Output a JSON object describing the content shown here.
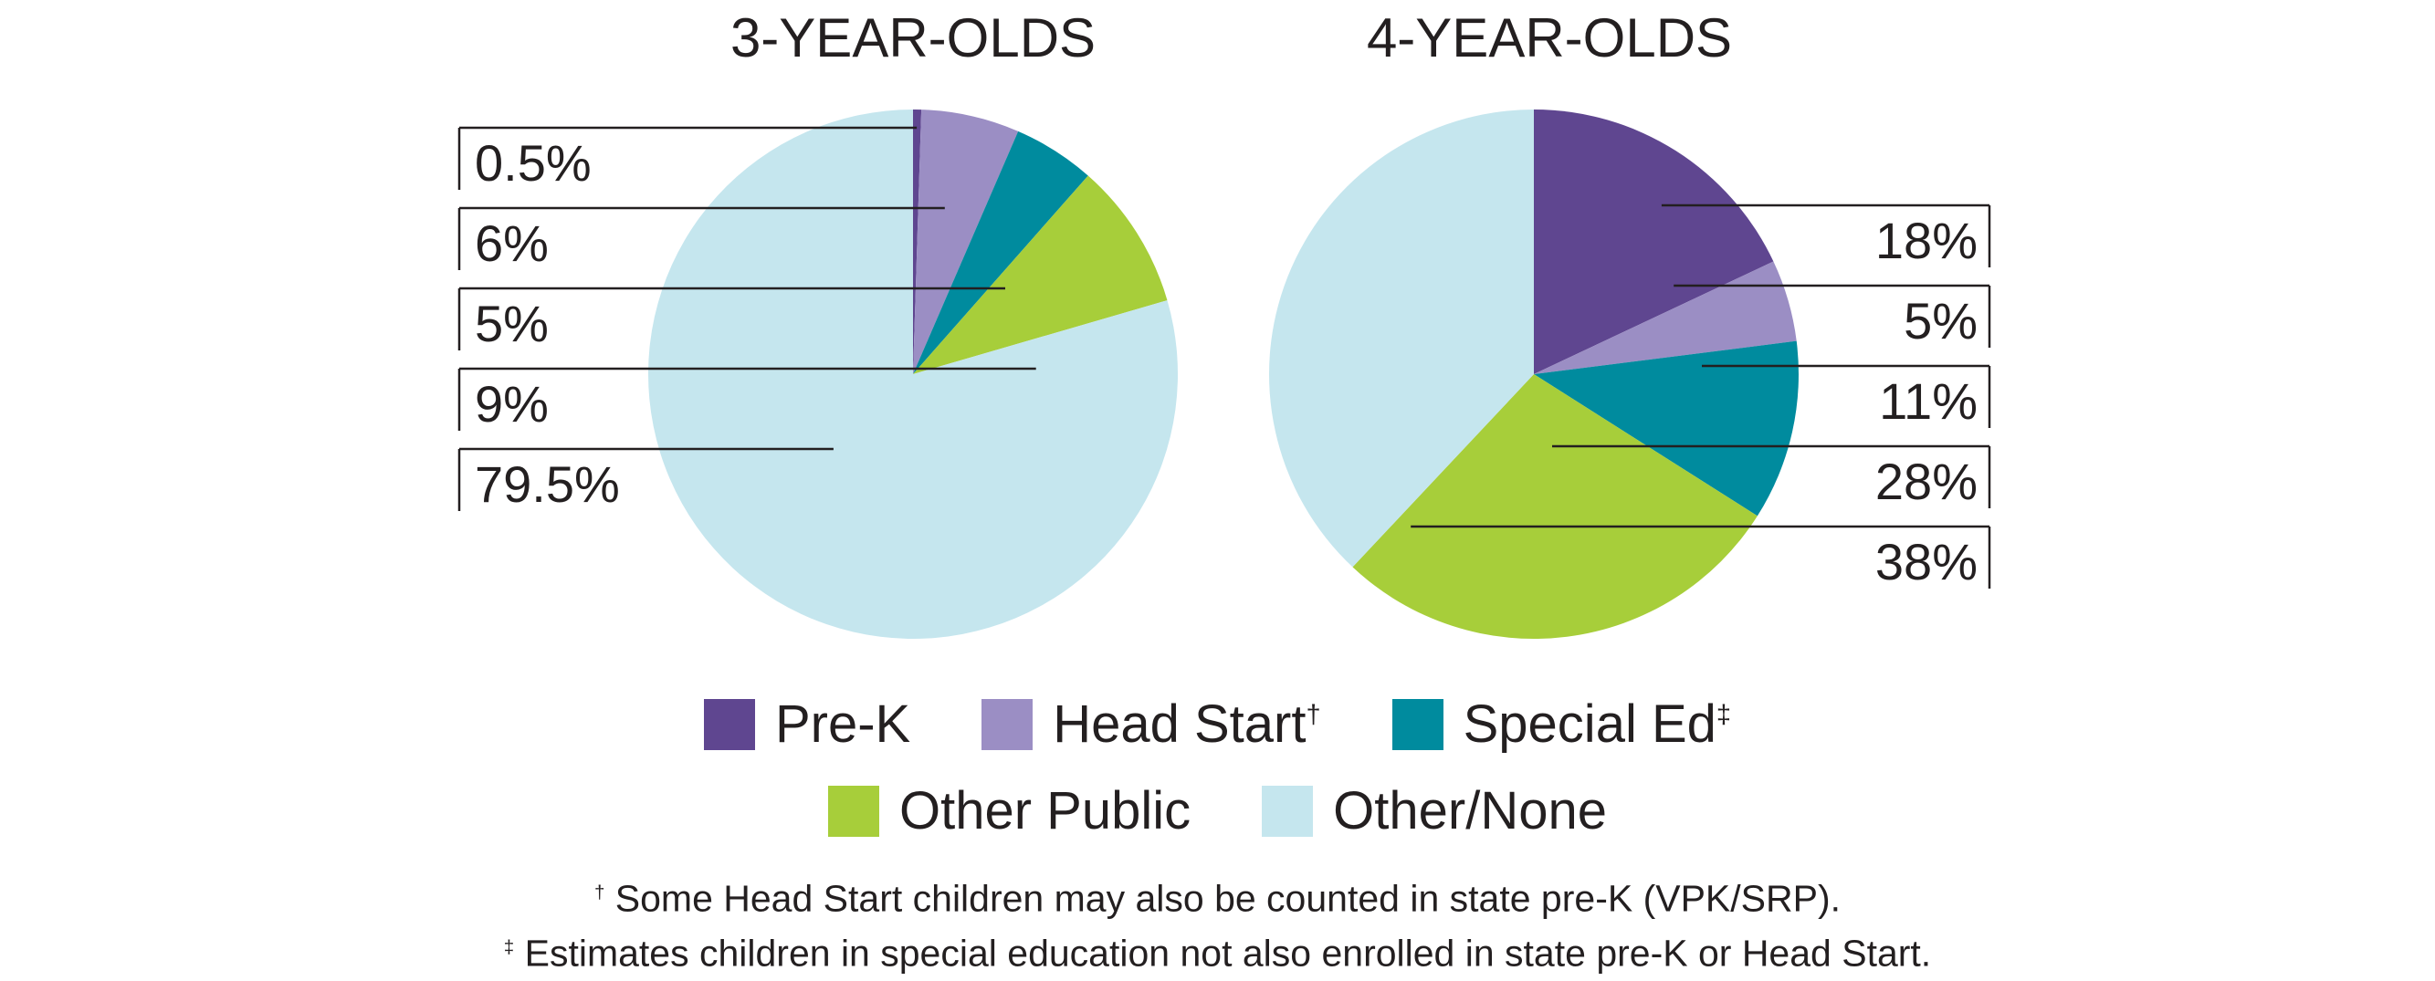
{
  "chart_data": [
    {
      "type": "pie",
      "title": "3-YEAR-OLDS",
      "categories": [
        "Pre-K",
        "Head Start",
        "Special Ed",
        "Other Public",
        "Other/None"
      ],
      "values": [
        0.5,
        6,
        5,
        9,
        79.5
      ],
      "labels": [
        "0.5%",
        "6%",
        "5%",
        "9%",
        "79.5%"
      ],
      "label_side": "left"
    },
    {
      "type": "pie",
      "title": "4-YEAR-OLDS",
      "categories": [
        "Pre-K",
        "Head Start",
        "Special Ed",
        "Other Public",
        "Other/None"
      ],
      "values": [
        18,
        5,
        11,
        28,
        38
      ],
      "labels": [
        "18%",
        "5%",
        "11%",
        "28%",
        "38%"
      ],
      "label_side": "right"
    }
  ],
  "colors": {
    "Pre-K": "#5f4690",
    "Head Start": "#9b8ec4",
    "Special Ed": "#008b9e",
    "Other Public": "#a7ce3a",
    "Other/None": "#c5e6ee"
  },
  "legend": {
    "row1": [
      {
        "label": "Pre-K",
        "mark": ""
      },
      {
        "label": "Head Start",
        "mark": "†"
      },
      {
        "label": "Special Ed",
        "mark": "‡"
      }
    ],
    "row2": [
      {
        "label": "Other Public",
        "mark": ""
      },
      {
        "label": "Other/None",
        "mark": ""
      }
    ]
  },
  "footnotes": [
    {
      "mark": "†",
      "text": " Some Head Start children may also be counted in state pre-K (VPK/SRP)."
    },
    {
      "mark": "‡",
      "text": " Estimates children in special education not also enrolled in state pre-K or Head Start."
    }
  ]
}
